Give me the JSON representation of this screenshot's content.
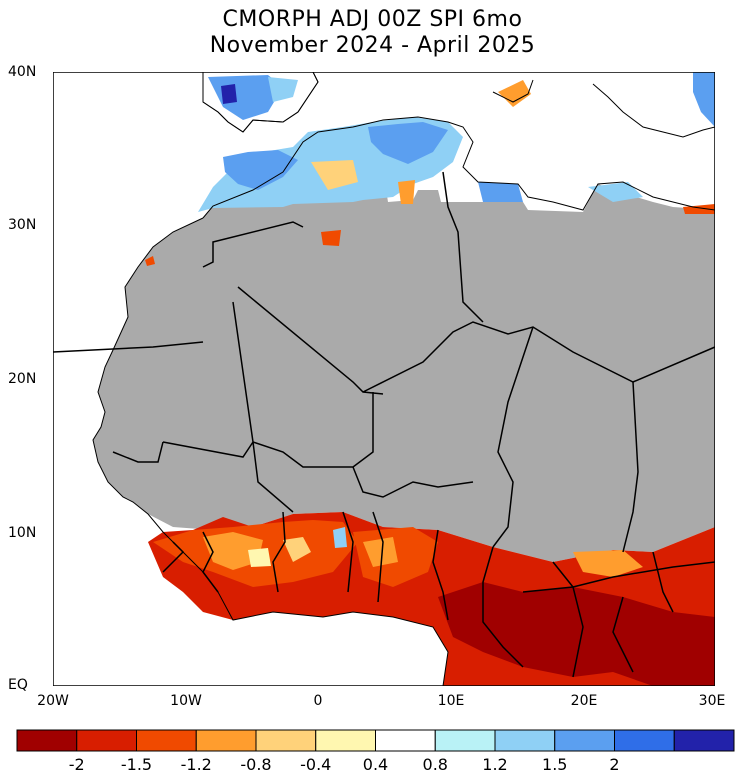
{
  "title": {
    "line1": "CMORPH ADJ 00Z SPI 6mo",
    "line2": "November 2024 - April 2025"
  },
  "lat_ticks": [
    "40N",
    "30N",
    "20N",
    "10N",
    "EQ"
  ],
  "lon_ticks": [
    "20W",
    "10W",
    "0",
    "10E",
    "20E",
    "30E"
  ],
  "legend": {
    "labels": [
      "-2",
      "-1.5",
      "-1.2",
      "-0.8",
      "-0.4",
      "0.4",
      "0.8",
      "1.2",
      "1.5",
      "2"
    ],
    "colors": [
      "#a00000",
      "#d81e00",
      "#f04a00",
      "#ff9d2e",
      "#ffd27a",
      "#fff7b0",
      "#ffffff",
      "#b9f2f6",
      "#8fd0f5",
      "#5b9ff0",
      "#2f6ee8",
      "#2222aa"
    ]
  },
  "colors": {
    "no_data": "#aaaaaa",
    "ocean": "#ffffff",
    "border": "#000000"
  }
}
